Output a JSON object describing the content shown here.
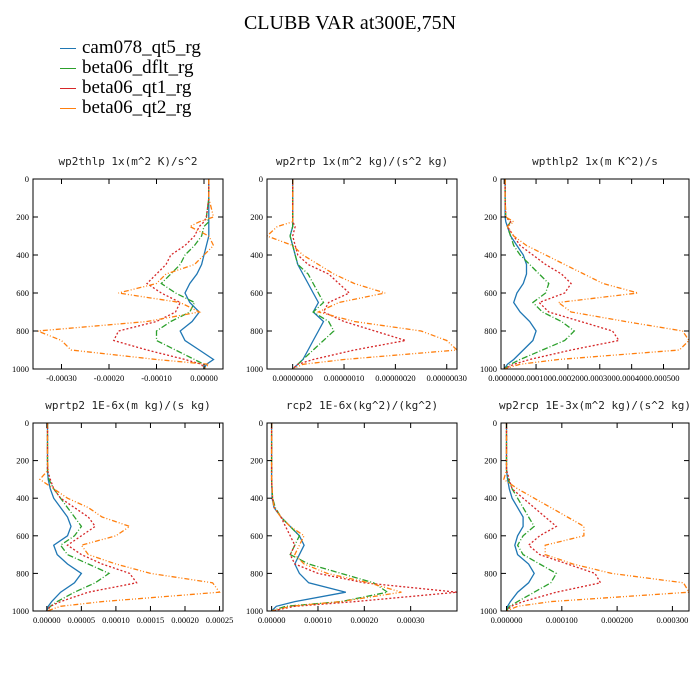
{
  "title": "CLUBB VAR at300E,75N",
  "legend": [
    {
      "name": "cam078_qt5_rg",
      "color": "#1f77b4",
      "dash": ""
    },
    {
      "name": "beta06_dflt_rg",
      "color": "#2ca02c",
      "dash": "6,2,1,2"
    },
    {
      "name": "beta06_qt1_rg",
      "color": "#d62728",
      "dash": "2,2"
    },
    {
      "name": "beta06_qt2_rg",
      "color": "#ff7f0e",
      "dash": "5,2,1,2,1,2"
    }
  ],
  "chart_data": [
    {
      "type": "line",
      "title": "wp2thlp  1x(m^2 K)/s^2",
      "ylim": [
        1000,
        0
      ],
      "xlim": [
        -0.00036,
        4e-05
      ],
      "y_ticks": [
        "0",
        "200",
        "400",
        "600",
        "800",
        "1000"
      ],
      "x_ticks": [
        {
          "v": -0.0003,
          "label": "-0.00030"
        },
        {
          "v": -0.0002,
          "label": "-0.00020"
        },
        {
          "v": -0.0001,
          "label": "-0.00010"
        },
        {
          "v": 0,
          "label": "0.00000"
        }
      ],
      "y": [
        0,
        100,
        200,
        225,
        250,
        300,
        350,
        400,
        450,
        500,
        550,
        600,
        650,
        700,
        750,
        800,
        850,
        900,
        950,
        975,
        1000
      ],
      "series": [
        {
          "name": "cam078_qt5_rg",
          "x": [
            1e-05,
            1e-05,
            1e-05,
            1e-05,
            1e-05,
            1e-05,
            5e-06,
            0.0,
            -5e-06,
            -1.5e-05,
            -3e-05,
            -4e-05,
            -3e-05,
            -1e-05,
            -2.5e-05,
            -5e-05,
            -4e-05,
            -1e-05,
            2e-05,
            5e-06,
            0.0
          ]
        },
        {
          "name": "beta06_dflt_rg",
          "x": [
            1e-05,
            1e-05,
            5e-06,
            1e-05,
            0.0,
            -5e-06,
            -2e-05,
            -4e-05,
            -5e-05,
            -7e-05,
            -9e-05,
            -6e-05,
            -2e-05,
            -3e-05,
            -7e-05,
            -0.0001,
            -0.0001,
            -6e-05,
            -2e-05,
            0.0,
            0.0
          ]
        },
        {
          "name": "beta06_qt1_rg",
          "x": [
            1e-05,
            1e-05,
            5e-06,
            0.0,
            -1e-05,
            -2e-05,
            -4e-05,
            -7e-05,
            -8e-05,
            -0.0001,
            -0.00012,
            -9e-05,
            -5e-05,
            -6e-05,
            -0.0001,
            -0.00018,
            -0.00019,
            -0.00012,
            -4e-05,
            -5e-06,
            0.0
          ]
        },
        {
          "name": "beta06_qt2_rg",
          "x": [
            1e-05,
            1e-05,
            2e-05,
            -1e-05,
            -3e-05,
            1e-05,
            2e-05,
            0.0,
            -2e-05,
            -8e-05,
            -0.0001,
            -0.00018,
            -5e-05,
            -1e-05,
            -0.00012,
            -0.00035,
            -0.0003,
            -0.00028,
            -0.0001,
            1e-05,
            0.0
          ]
        }
      ]
    },
    {
      "type": "line",
      "title": "wp2rtp  1x(m^2 kg)/(s^2 kg)",
      "ylim": [
        1000,
        0
      ],
      "xlim": [
        -5e-08,
        3.2e-07
      ],
      "y_ticks": [
        "0",
        "200",
        "400",
        "600",
        "800",
        "1000"
      ],
      "x_ticks": [
        {
          "v": 0.0,
          "label": "0.00000000"
        },
        {
          "v": 1e-07,
          "label": "0.00000010"
        },
        {
          "v": 2e-07,
          "label": "0.00000020"
        },
        {
          "v": 3e-07,
          "label": "0.00000030"
        }
      ],
      "y": [
        0,
        100,
        200,
        225,
        250,
        300,
        350,
        400,
        450,
        500,
        550,
        600,
        650,
        700,
        750,
        800,
        850,
        900,
        950,
        975,
        1000
      ],
      "series": [
        {
          "name": "cam078_qt5_rg",
          "x": [
            0.0,
            0.0,
            0.0,
            0.0,
            0.0,
            -5e-09,
            0.0,
            5e-09,
            1e-08,
            2e-08,
            3e-08,
            4e-08,
            5e-08,
            4e-08,
            6e-08,
            5e-08,
            4e-08,
            3e-08,
            2e-08,
            1e-08,
            0.0
          ]
        },
        {
          "name": "beta06_dflt_rg",
          "x": [
            0.0,
            0.0,
            0.0,
            0.0,
            0.0,
            -5e-09,
            0.0,
            5e-09,
            1e-08,
            3e-08,
            4e-08,
            5e-08,
            6e-08,
            4e-08,
            7e-08,
            8e-08,
            6e-08,
            4e-08,
            2e-08,
            1e-08,
            0.0
          ]
        },
        {
          "name": "beta06_qt1_rg",
          "x": [
            0.0,
            0.0,
            0.0,
            0.0,
            5e-09,
            0.0,
            5e-09,
            1e-08,
            3e-08,
            7e-08,
            9e-08,
            1.1e-07,
            7e-08,
            6e-08,
            1e-07,
            1.6e-07,
            2.2e-07,
            1.2e-07,
            4e-08,
            1e-08,
            0.0
          ]
        },
        {
          "name": "beta06_qt2_rg",
          "x": [
            0.0,
            0.0,
            0.0,
            0.0,
            -3e-08,
            -5e-08,
            0.0,
            2e-08,
            5e-08,
            8e-08,
            1.2e-07,
            1.8e-07,
            9e-08,
            5e-08,
            1.2e-07,
            2.5e-07,
            3e-07,
            3.2e-07,
            1e-07,
            2e-08,
            0.0
          ]
        }
      ]
    },
    {
      "type": "line",
      "title": "wpthlp2  1x(m K^2)/s",
      "ylim": [
        1000,
        0
      ],
      "xlim": [
        -1e-05,
        0.00058
      ],
      "y_ticks": [
        "0",
        "200",
        "400",
        "600",
        "800",
        "1000"
      ],
      "x_ticks": [
        {
          "v": 0.0,
          "label": "0.000000"
        },
        {
          "v": 0.0001,
          "label": "0.000100"
        },
        {
          "v": 0.0002,
          "label": "0.000200"
        },
        {
          "v": 0.0003,
          "label": "0.000300"
        },
        {
          "v": 0.0004,
          "label": "0.000400"
        },
        {
          "v": 0.0005,
          "label": "0.000500"
        }
      ],
      "y": [
        0,
        100,
        200,
        225,
        250,
        300,
        350,
        400,
        450,
        500,
        550,
        600,
        650,
        700,
        750,
        800,
        850,
        900,
        950,
        975,
        1000
      ],
      "series": [
        {
          "name": "cam078_qt5_rg",
          "x": [
            3e-06,
            3e-06,
            3e-06,
            5e-06,
            1e-05,
            2e-05,
            4e-05,
            6e-05,
            7e-05,
            7e-05,
            6e-05,
            4e-05,
            3e-05,
            5e-05,
            8e-05,
            0.0001,
            9e-05,
            6e-05,
            3e-05,
            1e-05,
            0.0
          ]
        },
        {
          "name": "beta06_dflt_rg",
          "x": [
            3e-06,
            3e-06,
            5e-06,
            2e-05,
            1e-05,
            2e-05,
            3e-05,
            5e-05,
            8e-05,
            0.00011,
            0.00014,
            0.00013,
            9e-05,
            0.00012,
            0.00018,
            0.00022,
            0.00019,
            0.00012,
            5e-05,
            2e-05,
            0.0
          ]
        },
        {
          "name": "beta06_qt1_rg",
          "x": [
            3e-06,
            3e-06,
            5e-06,
            2e-05,
            1e-05,
            3e-05,
            5e-05,
            9e-05,
            0.00013,
            0.00018,
            0.00021,
            0.00019,
            0.00011,
            0.00014,
            0.00024,
            0.00034,
            0.00036,
            0.00021,
            8e-05,
            3e-05,
            0.0
          ]
        },
        {
          "name": "beta06_qt2_rg",
          "x": [
            3e-06,
            3e-06,
            5e-06,
            3e-05,
            1e-05,
            3e-05,
            7e-05,
            0.00013,
            0.00019,
            0.00025,
            0.00031,
            0.00042,
            0.00017,
            0.00021,
            0.00038,
            0.00056,
            0.00058,
            0.00055,
            0.00017,
            5e-05,
            0.0
          ]
        }
      ]
    },
    {
      "type": "line",
      "title": "wprtp2  1E-6x(m kg)/(s kg)",
      "ylim": [
        1000,
        0
      ],
      "xlim": [
        -2e-05,
        0.000255
      ],
      "y_ticks": [
        "0",
        "200",
        "400",
        "600",
        "800",
        "1000"
      ],
      "x_ticks": [
        {
          "v": 0.0,
          "label": "0.00000"
        },
        {
          "v": 5e-05,
          "label": "0.00005"
        },
        {
          "v": 0.0001,
          "label": "0.00010"
        },
        {
          "v": 0.00015,
          "label": "0.00015"
        },
        {
          "v": 0.0002,
          "label": "0.00020"
        },
        {
          "v": 0.00025,
          "label": "0.00025"
        }
      ],
      "y": [
        0,
        100,
        200,
        250,
        300,
        350,
        400,
        450,
        500,
        550,
        600,
        650,
        700,
        750,
        800,
        850,
        900,
        950,
        975,
        1000
      ],
      "series": [
        {
          "name": "cam078_qt5_rg",
          "x": [
            1e-06,
            1e-06,
            1e-06,
            1e-06,
            2e-06,
            5e-06,
            1e-05,
            2e-05,
            3e-05,
            3.5e-05,
            3e-05,
            1e-05,
            1.5e-05,
            3e-05,
            5e-05,
            4e-05,
            2e-05,
            7e-06,
            2e-06,
            0.0
          ]
        },
        {
          "name": "beta06_dflt_rg",
          "x": [
            1e-06,
            1e-06,
            1e-06,
            1e-06,
            3e-06,
            1e-05,
            2e-05,
            3e-05,
            4e-05,
            5e-05,
            4e-05,
            2e-05,
            3e-05,
            6e-05,
            9e-05,
            7e-05,
            4e-05,
            1.5e-05,
            5e-06,
            0.0
          ]
        },
        {
          "name": "beta06_qt1_rg",
          "x": [
            1e-06,
            1e-06,
            1e-06,
            1e-06,
            5e-06,
            1e-05,
            2e-05,
            4e-05,
            6e-05,
            7e-05,
            5e-05,
            3e-05,
            5e-05,
            8e-05,
            0.00012,
            0.00013,
            6e-05,
            2e-05,
            5e-06,
            0.0
          ]
        },
        {
          "name": "beta06_qt2_rg",
          "x": [
            1e-06,
            1e-06,
            1e-06,
            2e-06,
            -1e-05,
            1e-05,
            3e-05,
            6e-05,
            8e-05,
            0.00012,
            0.0001,
            5e-05,
            6e-05,
            0.0001,
            0.00015,
            0.00024,
            0.00025,
            8e-05,
            2e-05,
            0.0
          ]
        }
      ]
    },
    {
      "type": "line",
      "title": "rcp2  1E-6x(kg^2)/(kg^2)",
      "ylim": [
        1000,
        0
      ],
      "xlim": [
        -1e-05,
        0.0004
      ],
      "y_ticks": [
        "0",
        "200",
        "400",
        "600",
        "800",
        "1000"
      ],
      "x_ticks": [
        {
          "v": 0.0,
          "label": "0.00000"
        },
        {
          "v": 0.0001,
          "label": "0.00010"
        },
        {
          "v": 0.0002,
          "label": "0.00020"
        },
        {
          "v": 0.0003,
          "label": "0.00030"
        }
      ],
      "y": [
        0,
        100,
        200,
        300,
        400,
        450,
        500,
        550,
        600,
        650,
        700,
        750,
        800,
        850,
        900,
        950,
        975,
        1000
      ],
      "series": [
        {
          "name": "cam078_qt5_rg",
          "x": [
            0.0,
            0.0,
            0.0,
            0.0,
            1e-06,
            5e-06,
            2e-05,
            4e-05,
            6e-05,
            7e-05,
            6e-05,
            5e-05,
            6e-05,
            8e-05,
            0.00016,
            5e-05,
            1e-05,
            0.0
          ]
        },
        {
          "name": "beta06_dflt_rg",
          "x": [
            0.0,
            0.0,
            0.0,
            0.0,
            2e-06,
            8e-06,
            2e-05,
            4e-05,
            6e-05,
            5e-05,
            4e-05,
            8e-05,
            0.00015,
            0.00022,
            0.00025,
            0.00015,
            3e-05,
            0.0
          ]
        },
        {
          "name": "beta06_qt1_rg",
          "x": [
            0.0,
            0.0,
            0.0,
            0.0,
            2e-06,
            6e-06,
            2e-05,
            3e-05,
            4e-05,
            5e-05,
            4e-05,
            5e-05,
            0.0001,
            0.0002,
            0.0004,
            0.00018,
            5e-05,
            0.0
          ]
        },
        {
          "name": "beta06_qt2_rg",
          "x": [
            0.0,
            0.0,
            0.0,
            0.0,
            2e-06,
            5e-06,
            2e-05,
            4e-05,
            7e-05,
            6e-05,
            5e-05,
            7e-05,
            0.00012,
            0.00021,
            0.00028,
            0.00015,
            4e-05,
            0.0
          ]
        }
      ]
    },
    {
      "type": "line",
      "title": "wp2rcp  1E-3x(m^2 kg)/(s^2 kg)",
      "ylim": [
        1000,
        0
      ],
      "xlim": [
        -1e-05,
        0.00033
      ],
      "y_ticks": [
        "0",
        "200",
        "400",
        "600",
        "800",
        "1000"
      ],
      "x_ticks": [
        {
          "v": 0.0,
          "label": "0.000000"
        },
        {
          "v": 0.0001,
          "label": "0.000100"
        },
        {
          "v": 0.0002,
          "label": "0.000200"
        },
        {
          "v": 0.0003,
          "label": "0.000300"
        }
      ],
      "y": [
        0,
        100,
        200,
        250,
        300,
        350,
        400,
        450,
        500,
        550,
        600,
        650,
        700,
        750,
        800,
        850,
        900,
        950,
        975,
        1000
      ],
      "series": [
        {
          "name": "cam078_qt5_rg",
          "x": [
            0.0,
            0.0,
            0.0,
            0.0,
            2e-06,
            5e-06,
            1e-05,
            2e-05,
            3e-05,
            3e-05,
            2e-05,
            1.5e-05,
            2e-05,
            4e-05,
            5e-05,
            4e-05,
            2e-05,
            7e-06,
            2e-06,
            0.0
          ]
        },
        {
          "name": "beta06_dflt_rg",
          "x": [
            0.0,
            0.0,
            0.0,
            0.0,
            3e-06,
            1e-05,
            2e-05,
            3e-05,
            4e-05,
            5e-05,
            3e-05,
            2e-05,
            3e-05,
            6e-05,
            9e-05,
            8e-05,
            5e-05,
            2e-05,
            5e-06,
            0.0
          ]
        },
        {
          "name": "beta06_qt1_rg",
          "x": [
            0.0,
            0.0,
            0.0,
            0.0,
            5e-06,
            1e-05,
            3e-05,
            5e-05,
            7e-05,
            9e-05,
            6e-05,
            4e-05,
            6e-05,
            0.00011,
            0.00016,
            0.00017,
            9e-05,
            3e-05,
            8e-06,
            0.0
          ]
        },
        {
          "name": "beta06_qt2_rg",
          "x": [
            0.0,
            0.0,
            0.0,
            0.0,
            -5e-06,
            2e-05,
            5e-05,
            8e-05,
            0.00011,
            0.00014,
            0.00014,
            7e-05,
            7e-05,
            0.00012,
            0.00019,
            0.00032,
            0.00033,
            8e-05,
            2e-05,
            0.0
          ]
        }
      ]
    }
  ]
}
